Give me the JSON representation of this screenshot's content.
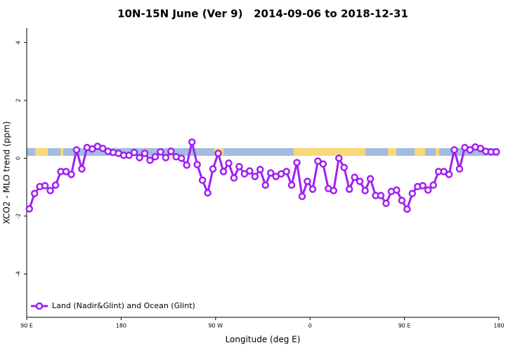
{
  "chart_data": {
    "type": "line",
    "title": "10N-15N June (Ver 9)   2014-09-06 to 2018-12-31",
    "x_label": "Longitude (deg E)",
    "y_label": "XCO2 - MLO trend (ppm)",
    "xlim": [
      90,
      540
    ],
    "xticks": [
      {
        "value": 90,
        "label": "90 E"
      },
      {
        "value": 180,
        "label": "180"
      },
      {
        "value": 270,
        "label": "90 W"
      },
      {
        "value": 360,
        "label": "0"
      },
      {
        "value": 450,
        "label": "90 E"
      },
      {
        "value": 540,
        "label": "180"
      }
    ],
    "ylim": [
      -5.5,
      4.5
    ],
    "yticks": [
      -4,
      -2,
      0,
      2,
      4
    ],
    "legend": "bottom-left",
    "x": [
      92.5,
      97.5,
      102.5,
      107.5,
      112.5,
      117.5,
      122.5,
      127.5,
      132.5,
      137.5,
      142.5,
      147.5,
      152.5,
      157.5,
      162.5,
      167.5,
      172.5,
      177.5,
      182.5,
      187.5,
      192.5,
      197.5,
      202.5,
      207.5,
      212.5,
      217.5,
      222.5,
      227.5,
      232.5,
      237.5,
      242.5,
      247.5,
      252.5,
      257.5,
      262.5,
      267.5,
      272.5,
      277.5,
      282.5,
      287.5,
      292.5,
      297.5,
      302.5,
      307.5,
      312.5,
      317.5,
      322.5,
      327.5,
      332.5,
      337.5,
      342.5,
      347.5,
      352.5,
      357.5,
      362.5,
      367.5,
      372.5,
      377.5,
      382.5,
      387.5,
      392.5,
      397.5,
      402.5,
      407.5,
      412.5,
      417.5,
      422.5,
      427.5,
      432.5,
      437.5,
      442.5,
      447.5,
      452.5,
      457.5,
      462.5,
      467.5,
      472.5,
      477.5,
      482.5,
      487.5,
      492.5,
      497.5,
      502.5,
      507.5,
      512.5,
      517.5,
      522.5,
      527.5,
      532.5,
      537.5
    ],
    "series": [
      {
        "name": "Land (Nadir&Glint) and Ocean (Glint)",
        "color": "#a020f0",
        "values": [
          -1.75,
          -1.22,
          -0.98,
          -0.95,
          -1.12,
          -0.93,
          -0.46,
          -0.46,
          -0.56,
          0.29,
          -0.37,
          0.37,
          0.32,
          0.41,
          0.34,
          0.24,
          0.2,
          0.17,
          0.1,
          0.1,
          0.2,
          0.02,
          0.17,
          -0.07,
          0.05,
          0.22,
          0.02,
          0.24,
          0.05,
          0,
          -0.24,
          0.56,
          -0.22,
          -0.76,
          -1.2,
          -0.37,
          0.17,
          -0.46,
          -0.17,
          -0.68,
          -0.29,
          -0.54,
          -0.44,
          -0.63,
          -0.39,
          -0.93,
          -0.51,
          -0.63,
          -0.54,
          -0.46,
          -0.93,
          -0.15,
          -1.32,
          -0.8,
          -1.07,
          -0.1,
          -0.2,
          -1.05,
          -1.12,
          0,
          -0.32,
          -1.07,
          -0.66,
          -0.8,
          -1.12,
          -0.71,
          -1.29,
          -1.29,
          -1.56,
          -1.15,
          -1.1,
          -1.46,
          -1.76,
          -1.22,
          -0.98,
          -0.95,
          -1.1,
          -0.93,
          -0.46,
          -0.46,
          -0.56,
          0.29,
          -0.37,
          0.37,
          0.29,
          0.39,
          0.34,
          0.24,
          0.22,
          0.22
        ]
      }
    ]
  }
}
